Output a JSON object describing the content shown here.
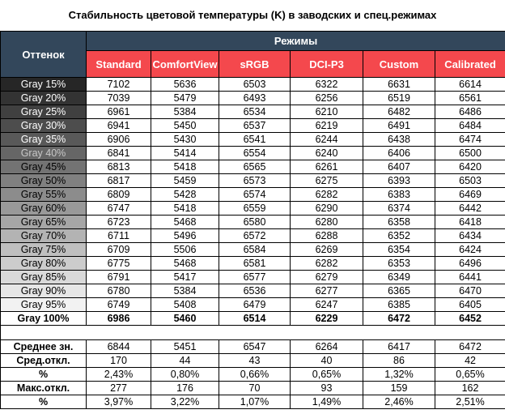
{
  "title": "Стабильность цветовой температуры (K) в заводских и спец.режимах",
  "header": {
    "shade_label": "Оттенок",
    "modes_label": "Режимы",
    "modes": [
      "Standard",
      "ComfortView",
      "sRGB",
      "DCI-P3",
      "Custom",
      "Calibrated"
    ]
  },
  "colors": {
    "header_dark": "#33475b",
    "header_red": "#f4484d"
  },
  "rows": [
    {
      "label": "Gray 15%",
      "bg": "#262626",
      "fg": "#ffffff",
      "values": [
        "7102",
        "5636",
        "6503",
        "6322",
        "6631",
        "6614"
      ]
    },
    {
      "label": "Gray 20%",
      "bg": "#333333",
      "fg": "#ffffff",
      "values": [
        "7039",
        "5479",
        "6493",
        "6256",
        "6519",
        "6561"
      ]
    },
    {
      "label": "Gray 25%",
      "bg": "#404040",
      "fg": "#ffffff",
      "values": [
        "6961",
        "5384",
        "6534",
        "6210",
        "6482",
        "6486"
      ]
    },
    {
      "label": "Gray 30%",
      "bg": "#4d4d4d",
      "fg": "#ffffff",
      "values": [
        "6941",
        "5450",
        "6537",
        "6219",
        "6491",
        "6484"
      ]
    },
    {
      "label": "Gray 35%",
      "bg": "#595959",
      "fg": "#ffffff",
      "values": [
        "6906",
        "5430",
        "6541",
        "6244",
        "6438",
        "6474"
      ]
    },
    {
      "label": "Gray 40%",
      "bg": "#666666",
      "fg": "#c8c8c8",
      "values": [
        "6841",
        "5414",
        "6554",
        "6240",
        "6406",
        "6500"
      ]
    },
    {
      "label": "Gray 45%",
      "bg": "#737373",
      "fg": "#000000",
      "values": [
        "6813",
        "5418",
        "6565",
        "6261",
        "6407",
        "6420"
      ]
    },
    {
      "label": "Gray 50%",
      "bg": "#808080",
      "fg": "#000000",
      "values": [
        "6817",
        "5459",
        "6573",
        "6275",
        "6393",
        "6503"
      ]
    },
    {
      "label": "Gray 55%",
      "bg": "#8c8c8c",
      "fg": "#000000",
      "values": [
        "6809",
        "5428",
        "6574",
        "6282",
        "6383",
        "6469"
      ]
    },
    {
      "label": "Gray 60%",
      "bg": "#999999",
      "fg": "#000000",
      "values": [
        "6747",
        "5418",
        "6559",
        "6290",
        "6374",
        "6442"
      ]
    },
    {
      "label": "Gray 65%",
      "bg": "#a6a6a6",
      "fg": "#000000",
      "values": [
        "6723",
        "5468",
        "6580",
        "6280",
        "6358",
        "6418"
      ]
    },
    {
      "label": "Gray 70%",
      "bg": "#b3b3b3",
      "fg": "#000000",
      "values": [
        "6711",
        "5496",
        "6572",
        "6288",
        "6352",
        "6434"
      ]
    },
    {
      "label": "Gray 75%",
      "bg": "#bfbfbf",
      "fg": "#000000",
      "values": [
        "6709",
        "5506",
        "6584",
        "6269",
        "6354",
        "6424"
      ]
    },
    {
      "label": "Gray 80%",
      "bg": "#cccccc",
      "fg": "#000000",
      "values": [
        "6775",
        "5468",
        "6581",
        "6282",
        "6353",
        "6496"
      ]
    },
    {
      "label": "Gray 85%",
      "bg": "#d9d9d9",
      "fg": "#000000",
      "values": [
        "6791",
        "5417",
        "6577",
        "6279",
        "6349",
        "6441"
      ]
    },
    {
      "label": "Gray 90%",
      "bg": "#e6e6e6",
      "fg": "#000000",
      "values": [
        "6780",
        "5384",
        "6536",
        "6277",
        "6365",
        "6470"
      ]
    },
    {
      "label": "Gray 95%",
      "bg": "#f2f2f2",
      "fg": "#000000",
      "values": [
        "6749",
        "5408",
        "6479",
        "6247",
        "6385",
        "6405"
      ]
    },
    {
      "label": "Gray 100%",
      "bg": "#ffffff",
      "fg": "#000000",
      "bold": true,
      "values": [
        "6986",
        "5460",
        "6514",
        "6229",
        "6472",
        "6452"
      ]
    }
  ],
  "summary": [
    {
      "label": "Среднее зн.",
      "values": [
        "6844",
        "5451",
        "6547",
        "6264",
        "6417",
        "6472"
      ]
    },
    {
      "label": "Сред.откл.",
      "values": [
        "170",
        "44",
        "43",
        "40",
        "86",
        "42"
      ]
    },
    {
      "label": "%",
      "values": [
        "2,43%",
        "0,80%",
        "0,66%",
        "0,65%",
        "1,32%",
        "0,65%"
      ]
    },
    {
      "label": "Макс.откл.",
      "values": [
        "277",
        "176",
        "70",
        "93",
        "159",
        "162"
      ]
    },
    {
      "label": "%",
      "values": [
        "3,97%",
        "3,22%",
        "1,07%",
        "1,49%",
        "2,46%",
        "2,51%"
      ]
    }
  ]
}
